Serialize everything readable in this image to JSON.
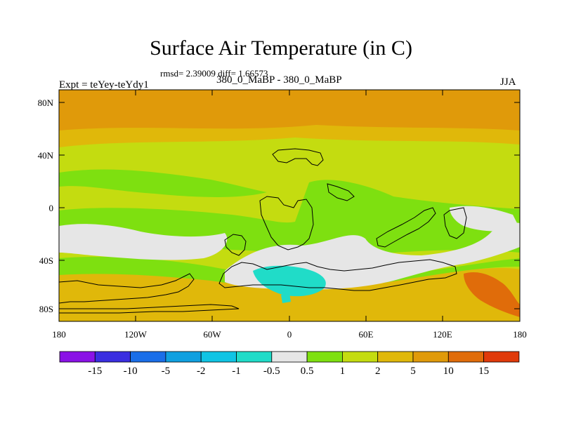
{
  "title": "Surface Air Temperature (in C)",
  "stats": "rmsd= 2.39009 diff= 1.66573",
  "subtitle": "380_0_MaBP - 380_0_MaBP",
  "experiment": "Expt = teYey-teYdy1",
  "season": "JJA",
  "lat_ticks": [
    "80N",
    "40N",
    "0",
    "40S",
    "80S"
  ],
  "lon_ticks": [
    "180",
    "120W",
    "60W",
    "0",
    "60E",
    "120E",
    "180"
  ],
  "colorbar": {
    "colors": [
      "#8a12e6",
      "#3a2ee0",
      "#1a6ee8",
      "#10a0e0",
      "#10c4e4",
      "#20dcc8",
      "#e6e6e6",
      "#7ee010",
      "#c4dc10",
      "#e0b80a",
      "#e09a0a",
      "#e06c0a",
      "#e03a0a"
    ],
    "labels": [
      "-15",
      "-10",
      "-5",
      "-2",
      "-1",
      "-0.5",
      "0.5",
      "1",
      "2",
      "5",
      "10",
      "15"
    ]
  },
  "colors": {
    "orange": "#e09a0a",
    "amber": "#e0b80a",
    "yellow_green": "#c4dc10",
    "green": "#7ee010",
    "white": "#e6e6e6",
    "cyan": "#20dcc8",
    "dark_orange": "#e06c0a"
  }
}
